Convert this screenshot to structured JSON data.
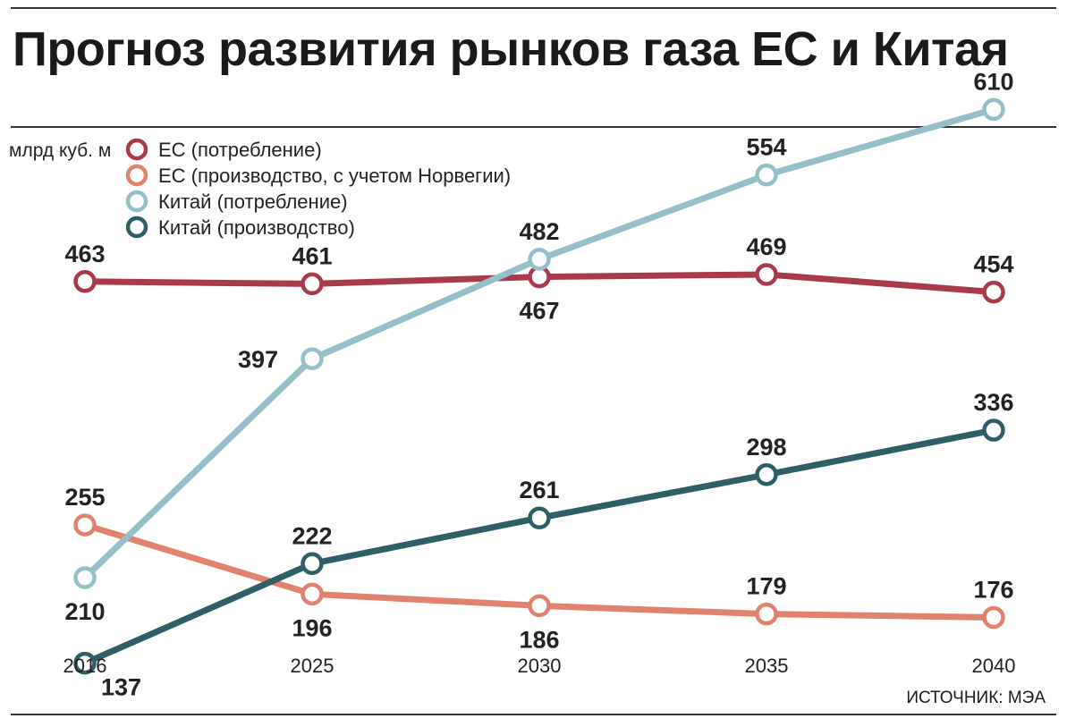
{
  "title": "Прогноз развития рынков газа ЕС и Китая",
  "source": "ИСТОЧНИК: МЭА",
  "chart_data": {
    "type": "line",
    "unit": "млрд куб. м",
    "x": [
      "2016",
      "2025",
      "2030",
      "2035",
      "2040"
    ],
    "ylim": [
      100,
      650
    ],
    "grid": false,
    "legend_position": "top-left",
    "series": [
      {
        "name": "ЕС (потребление)",
        "color": "#a83a4b",
        "values": [
          463,
          461,
          467,
          469,
          454
        ],
        "label_side": [
          "above",
          "above",
          "below",
          "above",
          "above"
        ]
      },
      {
        "name": "ЕС (производство, с учетом Норвегии)",
        "color": "#e0826e",
        "values": [
          255,
          196,
          186,
          179,
          176
        ],
        "label_side": [
          "above",
          "below",
          "below",
          "above",
          "above"
        ]
      },
      {
        "name": "Китай (потребление)",
        "color": "#94bfc8",
        "values": [
          210,
          397,
          482,
          554,
          610
        ],
        "label_side": [
          "below",
          "left",
          "above",
          "above",
          "above"
        ]
      },
      {
        "name": "Китай (производство)",
        "color": "#2e5e66",
        "values": [
          137,
          222,
          261,
          298,
          336
        ],
        "label_side": [
          "below-right",
          "above",
          "above",
          "above",
          "above"
        ]
      }
    ]
  }
}
